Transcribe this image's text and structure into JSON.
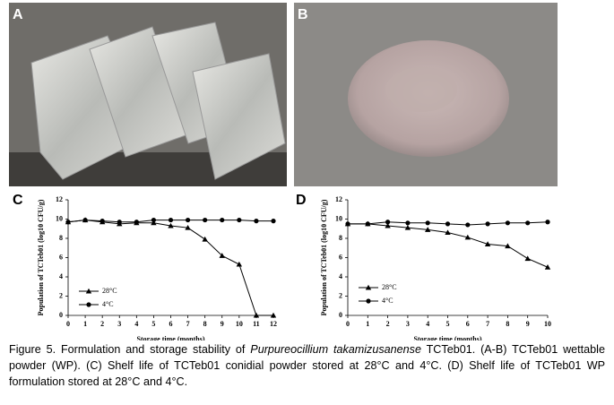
{
  "panels": [
    "A",
    "B",
    "C",
    "D"
  ],
  "chart_data": [
    {
      "type": "line",
      "xlabel": "Storage time (months)",
      "ylabel": "Population of TCTeb01 (log10 CFU/g)",
      "x": [
        0,
        1,
        2,
        3,
        4,
        5,
        6,
        7,
        8,
        9,
        10,
        11,
        12
      ],
      "xlim": [
        0,
        12
      ],
      "xticks": [
        0,
        1,
        2,
        3,
        4,
        5,
        6,
        7,
        8,
        9,
        10,
        11,
        12
      ],
      "ylim": [
        0,
        12
      ],
      "yticks": [
        0,
        2,
        4,
        6,
        8,
        10,
        12
      ],
      "legend": "center left",
      "series": [
        {
          "name": "28°C",
          "color": "#000000",
          "marker": "triangle",
          "values": [
            9.7,
            9.9,
            9.7,
            9.5,
            9.6,
            9.6,
            9.3,
            9.1,
            7.9,
            6.2,
            5.3,
            0,
            0
          ]
        },
        {
          "name": "4°C",
          "color": "#000000",
          "marker": "circle",
          "values": [
            9.7,
            9.9,
            9.8,
            9.7,
            9.7,
            9.9,
            9.9,
            9.9,
            9.9,
            9.9,
            9.9,
            9.8,
            9.8
          ]
        }
      ]
    },
    {
      "type": "line",
      "xlabel": "Storage time (months)",
      "ylabel": "Population of TCTeb01 (log10 CFU/g)",
      "x": [
        0,
        1,
        2,
        3,
        4,
        5,
        6,
        7,
        8,
        9,
        10
      ],
      "xlim": [
        0,
        10
      ],
      "xticks": [
        0,
        1,
        2,
        3,
        4,
        5,
        6,
        7,
        8,
        9,
        10
      ],
      "ylim": [
        0,
        12
      ],
      "yticks": [
        0,
        2,
        4,
        6,
        8,
        10,
        12
      ],
      "legend": "lower left",
      "series": [
        {
          "name": "28°C",
          "color": "#000000",
          "marker": "triangle",
          "values": [
            9.5,
            9.5,
            9.3,
            9.1,
            8.9,
            8.6,
            8.1,
            7.4,
            7.2,
            5.9,
            5.0
          ]
        },
        {
          "name": "4°C",
          "color": "#000000",
          "marker": "circle",
          "values": [
            9.5,
            9.5,
            9.7,
            9.6,
            9.6,
            9.5,
            9.4,
            9.5,
            9.6,
            9.6,
            9.7
          ]
        }
      ]
    }
  ],
  "caption": [
    "Figure 5. Formulation and storage stability of ",
    "Purpureocillium takamizusanense",
    " TCTeb01. (A-B) TCTeb01 wettable powder (WP). (C) Shelf life of TCTeb01 conidial powder stored at 28°C and 4°C. (D) Shelf life of TCTeb01 WP formulation stored at 28°C and 4°C."
  ]
}
